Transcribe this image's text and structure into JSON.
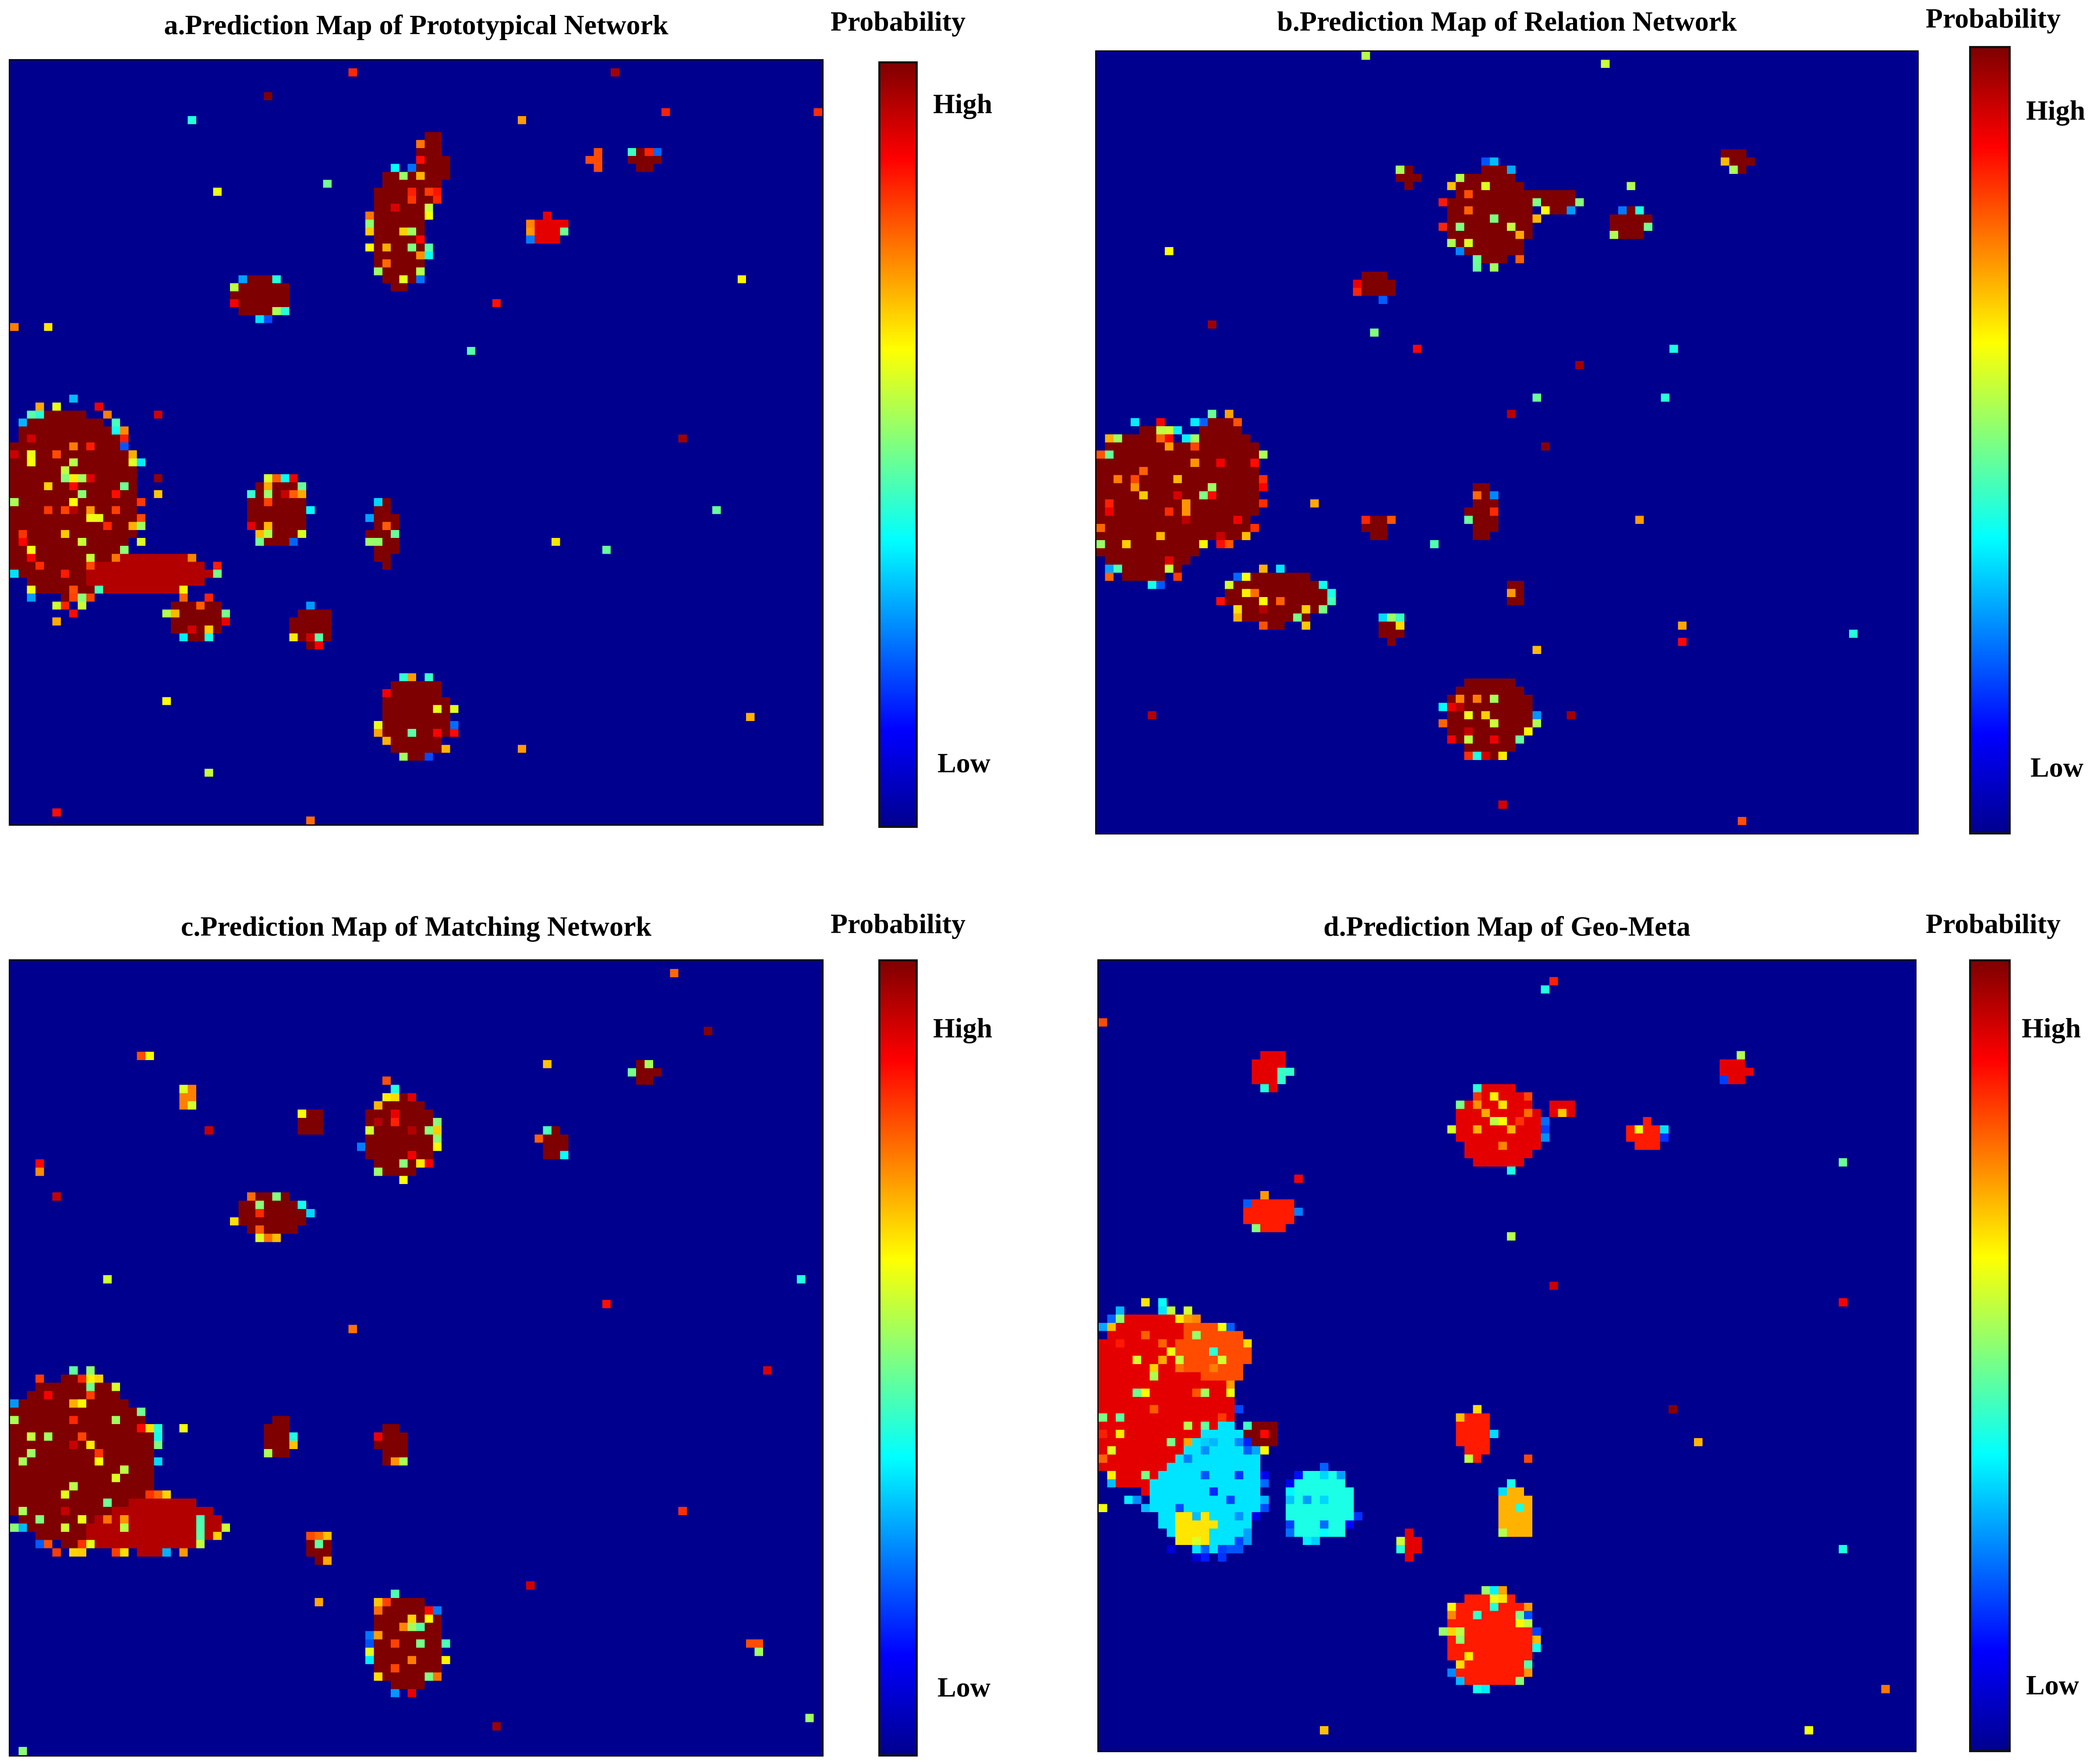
{
  "chart_data": [
    {
      "type": "heatmap",
      "title": "a.Prediction Map of Prototypical Network",
      "colorbar": {
        "title": "Probability",
        "high_label": "High",
        "low_label": "Low",
        "colormap": "jet"
      },
      "blobs": [
        {
          "cx": 0.07,
          "cy": 0.58,
          "rx": 0.1,
          "ry": 0.14,
          "v": 1.0
        },
        {
          "cx": 0.16,
          "cy": 0.67,
          "rx": 0.1,
          "ry": 0.03,
          "v": 0.95
        },
        {
          "cx": 0.23,
          "cy": 0.73,
          "rx": 0.04,
          "ry": 0.03,
          "v": 1.0
        },
        {
          "cx": 0.33,
          "cy": 0.59,
          "rx": 0.04,
          "ry": 0.05,
          "v": 1.0
        },
        {
          "cx": 0.46,
          "cy": 0.62,
          "rx": 0.02,
          "ry": 0.05,
          "v": 1.0
        },
        {
          "cx": 0.37,
          "cy": 0.74,
          "rx": 0.03,
          "ry": 0.03,
          "v": 1.0
        },
        {
          "cx": 0.5,
          "cy": 0.86,
          "rx": 0.05,
          "ry": 0.06,
          "v": 1.0
        },
        {
          "cx": 0.48,
          "cy": 0.22,
          "rx": 0.04,
          "ry": 0.09,
          "v": 1.0
        },
        {
          "cx": 0.52,
          "cy": 0.14,
          "rx": 0.02,
          "ry": 0.05,
          "v": 1.0
        },
        {
          "cx": 0.31,
          "cy": 0.31,
          "rx": 0.04,
          "ry": 0.03,
          "v": 1.0
        },
        {
          "cx": 0.66,
          "cy": 0.22,
          "rx": 0.03,
          "ry": 0.02,
          "v": 0.9
        },
        {
          "cx": 0.78,
          "cy": 0.13,
          "rx": 0.02,
          "ry": 0.02,
          "v": 1.0
        },
        {
          "cx": 0.72,
          "cy": 0.13,
          "rx": 0.01,
          "ry": 0.015,
          "v": 0.8
        },
        {
          "cx": 0.91,
          "cy": 0.86,
          "rx": 0.01,
          "ry": 0.01,
          "v": 0.7
        }
      ]
    },
    {
      "type": "heatmap",
      "title": "b.Prediction Map of Relation Network",
      "colorbar": {
        "title": "Probability",
        "high_label": "High",
        "low_label": "Low",
        "colormap": "jet"
      },
      "blobs": [
        {
          "cx": 0.06,
          "cy": 0.58,
          "rx": 0.09,
          "ry": 0.11,
          "v": 1.0
        },
        {
          "cx": 0.15,
          "cy": 0.55,
          "rx": 0.06,
          "ry": 0.09,
          "v": 1.0
        },
        {
          "cx": 0.22,
          "cy": 0.7,
          "rx": 0.07,
          "ry": 0.04,
          "v": 1.0
        },
        {
          "cx": 0.48,
          "cy": 0.21,
          "rx": 0.06,
          "ry": 0.07,
          "v": 1.0
        },
        {
          "cx": 0.56,
          "cy": 0.19,
          "rx": 0.03,
          "ry": 0.02,
          "v": 1.0
        },
        {
          "cx": 0.65,
          "cy": 0.22,
          "rx": 0.03,
          "ry": 0.02,
          "v": 1.0
        },
        {
          "cx": 0.78,
          "cy": 0.14,
          "rx": 0.02,
          "ry": 0.02,
          "v": 1.0
        },
        {
          "cx": 0.47,
          "cy": 0.59,
          "rx": 0.02,
          "ry": 0.04,
          "v": 1.0
        },
        {
          "cx": 0.48,
          "cy": 0.85,
          "rx": 0.06,
          "ry": 0.06,
          "v": 1.0
        },
        {
          "cx": 0.36,
          "cy": 0.74,
          "rx": 0.02,
          "ry": 0.02,
          "v": 1.0
        },
        {
          "cx": 0.34,
          "cy": 0.61,
          "rx": 0.015,
          "ry": 0.02,
          "v": 1.0
        },
        {
          "cx": 0.34,
          "cy": 0.3,
          "rx": 0.03,
          "ry": 0.02,
          "v": 1.0
        },
        {
          "cx": 0.38,
          "cy": 0.16,
          "rx": 0.015,
          "ry": 0.015,
          "v": 1.0
        },
        {
          "cx": 0.51,
          "cy": 0.69,
          "rx": 0.01,
          "ry": 0.02,
          "v": 1.0
        }
      ]
    },
    {
      "type": "heatmap",
      "title": "c.Prediction Map of Matching Network",
      "colorbar": {
        "title": "Probability",
        "high_label": "High",
        "low_label": "Low",
        "colormap": "jet"
      },
      "blobs": [
        {
          "cx": 0.08,
          "cy": 0.63,
          "rx": 0.11,
          "ry": 0.12,
          "v": 1.0
        },
        {
          "cx": 0.17,
          "cy": 0.71,
          "rx": 0.1,
          "ry": 0.04,
          "v": 0.95
        },
        {
          "cx": 0.33,
          "cy": 0.6,
          "rx": 0.02,
          "ry": 0.03,
          "v": 1.0
        },
        {
          "cx": 0.47,
          "cy": 0.61,
          "rx": 0.02,
          "ry": 0.03,
          "v": 1.0
        },
        {
          "cx": 0.38,
          "cy": 0.74,
          "rx": 0.02,
          "ry": 0.02,
          "v": 1.0
        },
        {
          "cx": 0.49,
          "cy": 0.86,
          "rx": 0.05,
          "ry": 0.07,
          "v": 1.0
        },
        {
          "cx": 0.48,
          "cy": 0.22,
          "rx": 0.05,
          "ry": 0.06,
          "v": 1.0
        },
        {
          "cx": 0.32,
          "cy": 0.32,
          "rx": 0.05,
          "ry": 0.03,
          "v": 1.0
        },
        {
          "cx": 0.67,
          "cy": 0.23,
          "rx": 0.02,
          "ry": 0.02,
          "v": 1.0
        },
        {
          "cx": 0.78,
          "cy": 0.14,
          "rx": 0.02,
          "ry": 0.015,
          "v": 1.0
        },
        {
          "cx": 0.22,
          "cy": 0.17,
          "rx": 0.015,
          "ry": 0.02,
          "v": 0.75
        },
        {
          "cx": 0.17,
          "cy": 0.12,
          "rx": 0.01,
          "ry": 0.01,
          "v": 0.8
        },
        {
          "cx": 0.37,
          "cy": 0.2,
          "rx": 0.02,
          "ry": 0.02,
          "v": 1.0
        },
        {
          "cx": 0.92,
          "cy": 0.86,
          "rx": 0.01,
          "ry": 0.01,
          "v": 0.8
        }
      ]
    },
    {
      "type": "heatmap",
      "title": "d.Prediction Map of Geo-Meta",
      "colorbar": {
        "title": "Probability",
        "high_label": "High",
        "low_label": "Low",
        "colormap": "jet"
      },
      "blobs": [
        {
          "cx": 0.07,
          "cy": 0.56,
          "rx": 0.11,
          "ry": 0.13,
          "v": 0.9
        },
        {
          "cx": 0.13,
          "cy": 0.5,
          "rx": 0.06,
          "ry": 0.05,
          "v": 0.8
        },
        {
          "cx": 0.13,
          "cy": 0.66,
          "rx": 0.08,
          "ry": 0.1,
          "v": 0.35
        },
        {
          "cx": 0.12,
          "cy": 0.71,
          "rx": 0.04,
          "ry": 0.04,
          "v": 0.65
        },
        {
          "cx": 0.27,
          "cy": 0.69,
          "rx": 0.05,
          "ry": 0.05,
          "v": 0.4
        },
        {
          "cx": 0.46,
          "cy": 0.6,
          "rx": 0.025,
          "ry": 0.035,
          "v": 0.85
        },
        {
          "cx": 0.51,
          "cy": 0.7,
          "rx": 0.025,
          "ry": 0.04,
          "v": 0.7
        },
        {
          "cx": 0.48,
          "cy": 0.86,
          "rx": 0.06,
          "ry": 0.07,
          "v": 0.85
        },
        {
          "cx": 0.2,
          "cy": 0.6,
          "rx": 0.025,
          "ry": 0.02,
          "v": 1.0
        },
        {
          "cx": 0.38,
          "cy": 0.74,
          "rx": 0.02,
          "ry": 0.02,
          "v": 0.9
        },
        {
          "cx": 0.49,
          "cy": 0.21,
          "rx": 0.06,
          "ry": 0.06,
          "v": 0.9
        },
        {
          "cx": 0.21,
          "cy": 0.32,
          "rx": 0.035,
          "ry": 0.025,
          "v": 0.85
        },
        {
          "cx": 0.21,
          "cy": 0.14,
          "rx": 0.025,
          "ry": 0.03,
          "v": 0.9
        },
        {
          "cx": 0.67,
          "cy": 0.22,
          "rx": 0.025,
          "ry": 0.02,
          "v": 0.85
        },
        {
          "cx": 0.78,
          "cy": 0.14,
          "rx": 0.02,
          "ry": 0.02,
          "v": 0.9
        },
        {
          "cx": 0.57,
          "cy": 0.19,
          "rx": 0.02,
          "ry": 0.015,
          "v": 0.9
        }
      ]
    }
  ]
}
